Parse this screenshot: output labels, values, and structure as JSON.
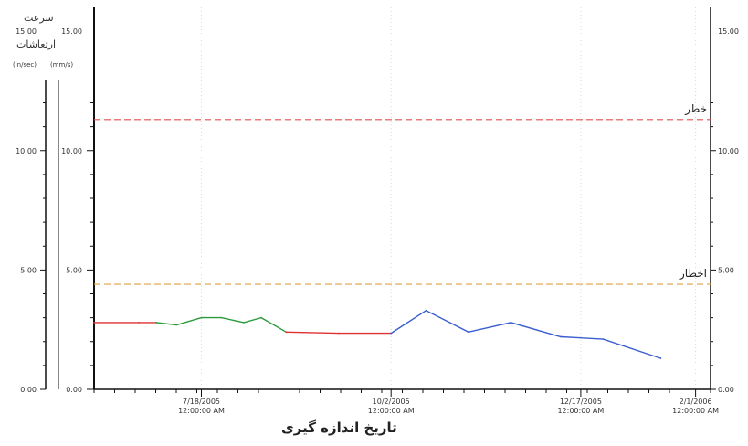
{
  "chart_data": {
    "type": "line",
    "y_title_line1": "سرعت",
    "y_title_line2": "ارتعاشات",
    "y_units": [
      "(in/sec)",
      "(mm/s)"
    ],
    "ylim": [
      0,
      16
    ],
    "y_ticks": [
      {
        "value": 0,
        "left_outer": "0.00",
        "left_inner": "0.00",
        "right": "0.00"
      },
      {
        "value": 5,
        "left_outer": "5.00",
        "left_inner": "5.00",
        "right": "5.00"
      },
      {
        "value": 10,
        "left_outer": "10.00",
        "left_inner": "10.00",
        "right": "10.00"
      },
      {
        "value": 15,
        "left_outer": "15.00",
        "left_inner": "15.00",
        "right": "15.00"
      }
    ],
    "xlim": [
      "2005-06-05",
      "2006-02-07"
    ],
    "x_ticks": [
      {
        "date": "2005-07-18",
        "line1": "7/18/2005",
        "line2": "12:00:00 AM"
      },
      {
        "date": "2005-10-02",
        "line1": "10/2/2005",
        "line2": "12:00:00 AM"
      },
      {
        "date": "2005-12-17",
        "line1": "12/17/2005",
        "line2": "12:00:00 AM"
      },
      {
        "date": "2006-02-01",
        "line1": "2/1/2006",
        "line2": "12:00:00 AM"
      }
    ],
    "xlabel": "تاریخ اندازه گیری",
    "thresholds": [
      {
        "label": "خطر",
        "value": 11.3,
        "color": "#e05050"
      },
      {
        "label": "اخطار",
        "value": 4.4,
        "color": "#e0a040"
      }
    ],
    "series": [
      {
        "color": "#e03030",
        "points": [
          [
            "2005-06-05",
            2.8
          ],
          [
            "2005-06-23",
            2.8
          ],
          [
            "2005-06-30",
            2.8
          ]
        ]
      },
      {
        "color": "#2a9a3a",
        "points": [
          [
            "2005-06-30",
            2.8
          ],
          [
            "2005-07-08",
            2.7
          ],
          [
            "2005-07-18",
            3.0
          ],
          [
            "2005-07-26",
            3.0
          ],
          [
            "2005-08-04",
            2.8
          ],
          [
            "2005-08-11",
            3.0
          ],
          [
            "2005-08-21",
            2.4
          ]
        ]
      },
      {
        "color": "#e03030",
        "points": [
          [
            "2005-08-21",
            2.4
          ],
          [
            "2005-09-11",
            2.35
          ],
          [
            "2005-10-02",
            2.35
          ]
        ]
      },
      {
        "color": "#3a5ed0",
        "points": [
          [
            "2005-10-02",
            2.35
          ],
          [
            "2005-10-16",
            3.3
          ],
          [
            "2005-11-02",
            2.4
          ],
          [
            "2005-11-19",
            2.8
          ],
          [
            "2005-12-09",
            2.2
          ],
          [
            "2005-12-26",
            2.1
          ],
          [
            "2006-01-18",
            1.3
          ]
        ]
      }
    ]
  }
}
